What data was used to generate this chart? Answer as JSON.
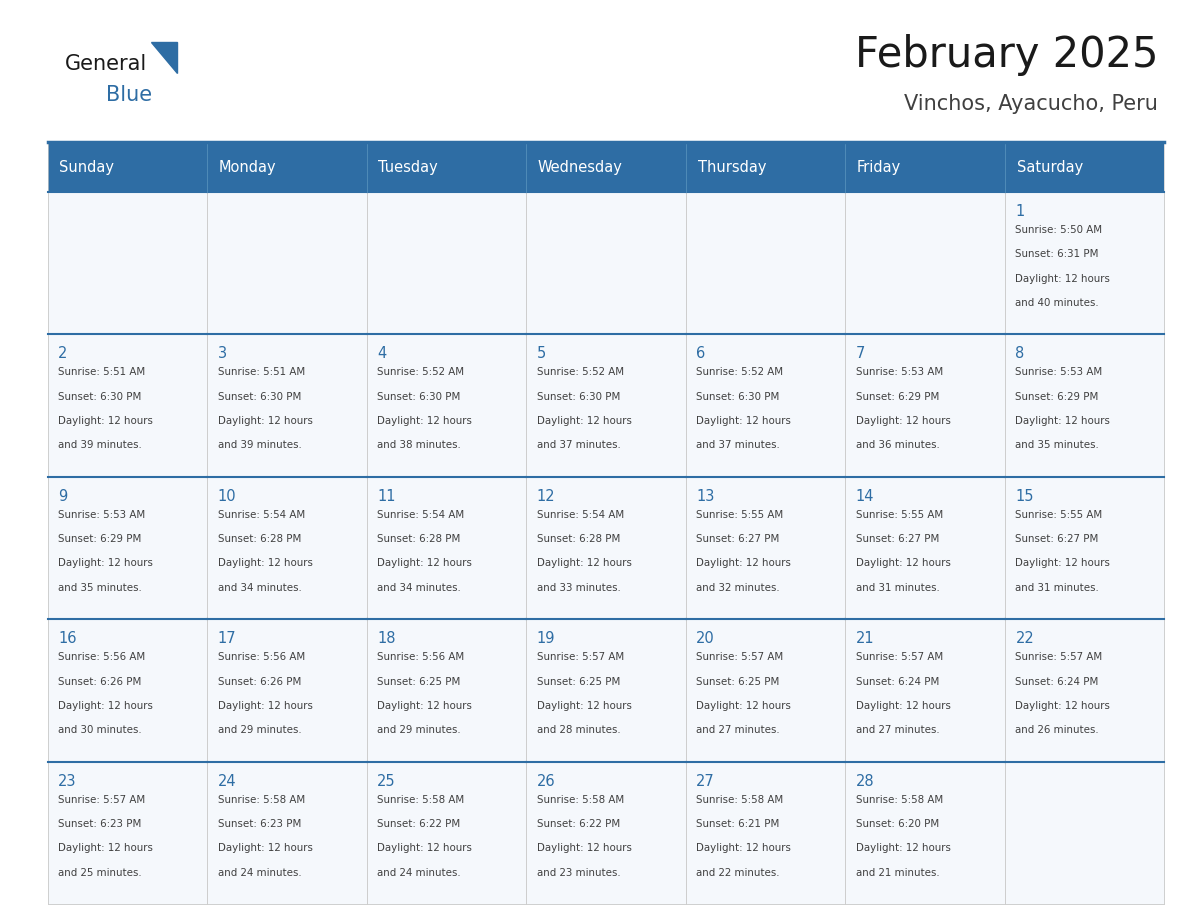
{
  "title": "February 2025",
  "subtitle": "Vinchos, Ayacucho, Peru",
  "header_bg_color": "#2E6DA4",
  "header_text_color": "#FFFFFF",
  "cell_bg_color": "#F5F8FC",
  "border_color": "#2E6DA4",
  "day_text_color": "#2E6DA4",
  "info_text_color": "#404040",
  "grid_line_color": "#CCCCCC",
  "background_color": "#FFFFFF",
  "days_of_week": [
    "Sunday",
    "Monday",
    "Tuesday",
    "Wednesday",
    "Thursday",
    "Friday",
    "Saturday"
  ],
  "num_cols": 7,
  "num_rows": 5,
  "calendar_data": [
    [
      null,
      null,
      null,
      null,
      null,
      null,
      {
        "day": 1,
        "sunrise": "5:50 AM",
        "sunset": "6:31 PM",
        "daylight_hours": 12,
        "daylight_minutes": 40
      }
    ],
    [
      {
        "day": 2,
        "sunrise": "5:51 AM",
        "sunset": "6:30 PM",
        "daylight_hours": 12,
        "daylight_minutes": 39
      },
      {
        "day": 3,
        "sunrise": "5:51 AM",
        "sunset": "6:30 PM",
        "daylight_hours": 12,
        "daylight_minutes": 39
      },
      {
        "day": 4,
        "sunrise": "5:52 AM",
        "sunset": "6:30 PM",
        "daylight_hours": 12,
        "daylight_minutes": 38
      },
      {
        "day": 5,
        "sunrise": "5:52 AM",
        "sunset": "6:30 PM",
        "daylight_hours": 12,
        "daylight_minutes": 37
      },
      {
        "day": 6,
        "sunrise": "5:52 AM",
        "sunset": "6:30 PM",
        "daylight_hours": 12,
        "daylight_minutes": 37
      },
      {
        "day": 7,
        "sunrise": "5:53 AM",
        "sunset": "6:29 PM",
        "daylight_hours": 12,
        "daylight_minutes": 36
      },
      {
        "day": 8,
        "sunrise": "5:53 AM",
        "sunset": "6:29 PM",
        "daylight_hours": 12,
        "daylight_minutes": 35
      }
    ],
    [
      {
        "day": 9,
        "sunrise": "5:53 AM",
        "sunset": "6:29 PM",
        "daylight_hours": 12,
        "daylight_minutes": 35
      },
      {
        "day": 10,
        "sunrise": "5:54 AM",
        "sunset": "6:28 PM",
        "daylight_hours": 12,
        "daylight_minutes": 34
      },
      {
        "day": 11,
        "sunrise": "5:54 AM",
        "sunset": "6:28 PM",
        "daylight_hours": 12,
        "daylight_minutes": 34
      },
      {
        "day": 12,
        "sunrise": "5:54 AM",
        "sunset": "6:28 PM",
        "daylight_hours": 12,
        "daylight_minutes": 33
      },
      {
        "day": 13,
        "sunrise": "5:55 AM",
        "sunset": "6:27 PM",
        "daylight_hours": 12,
        "daylight_minutes": 32
      },
      {
        "day": 14,
        "sunrise": "5:55 AM",
        "sunset": "6:27 PM",
        "daylight_hours": 12,
        "daylight_minutes": 31
      },
      {
        "day": 15,
        "sunrise": "5:55 AM",
        "sunset": "6:27 PM",
        "daylight_hours": 12,
        "daylight_minutes": 31
      }
    ],
    [
      {
        "day": 16,
        "sunrise": "5:56 AM",
        "sunset": "6:26 PM",
        "daylight_hours": 12,
        "daylight_minutes": 30
      },
      {
        "day": 17,
        "sunrise": "5:56 AM",
        "sunset": "6:26 PM",
        "daylight_hours": 12,
        "daylight_minutes": 29
      },
      {
        "day": 18,
        "sunrise": "5:56 AM",
        "sunset": "6:25 PM",
        "daylight_hours": 12,
        "daylight_minutes": 29
      },
      {
        "day": 19,
        "sunrise": "5:57 AM",
        "sunset": "6:25 PM",
        "daylight_hours": 12,
        "daylight_minutes": 28
      },
      {
        "day": 20,
        "sunrise": "5:57 AM",
        "sunset": "6:25 PM",
        "daylight_hours": 12,
        "daylight_minutes": 27
      },
      {
        "day": 21,
        "sunrise": "5:57 AM",
        "sunset": "6:24 PM",
        "daylight_hours": 12,
        "daylight_minutes": 27
      },
      {
        "day": 22,
        "sunrise": "5:57 AM",
        "sunset": "6:24 PM",
        "daylight_hours": 12,
        "daylight_minutes": 26
      }
    ],
    [
      {
        "day": 23,
        "sunrise": "5:57 AM",
        "sunset": "6:23 PM",
        "daylight_hours": 12,
        "daylight_minutes": 25
      },
      {
        "day": 24,
        "sunrise": "5:58 AM",
        "sunset": "6:23 PM",
        "daylight_hours": 12,
        "daylight_minutes": 24
      },
      {
        "day": 25,
        "sunrise": "5:58 AM",
        "sunset": "6:22 PM",
        "daylight_hours": 12,
        "daylight_minutes": 24
      },
      {
        "day": 26,
        "sunrise": "5:58 AM",
        "sunset": "6:22 PM",
        "daylight_hours": 12,
        "daylight_minutes": 23
      },
      {
        "day": 27,
        "sunrise": "5:58 AM",
        "sunset": "6:21 PM",
        "daylight_hours": 12,
        "daylight_minutes": 22
      },
      {
        "day": 28,
        "sunrise": "5:58 AM",
        "sunset": "6:20 PM",
        "daylight_hours": 12,
        "daylight_minutes": 21
      },
      null
    ]
  ]
}
